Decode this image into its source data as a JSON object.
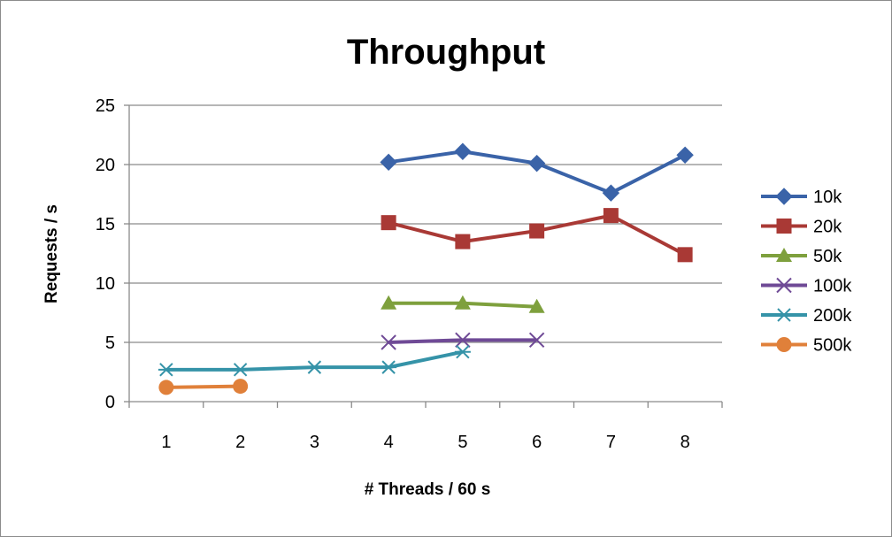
{
  "chart_data": {
    "type": "line",
    "title": "Throughput",
    "xlabel": "# Threads / 60 s",
    "ylabel": "Requests / s",
    "categories": [
      "1",
      "2",
      "3",
      "4",
      "5",
      "6",
      "7",
      "8"
    ],
    "ylim": [
      0,
      25
    ],
    "yticks": [
      "0",
      "5",
      "10",
      "15",
      "20",
      "25"
    ],
    "grid": true,
    "legend_position": "right",
    "series": [
      {
        "name": "10k",
        "color": "#3a63a8",
        "marker": "diamond",
        "values": [
          null,
          null,
          null,
          20.2,
          21.1,
          20.1,
          17.6,
          20.8
        ]
      },
      {
        "name": "20k",
        "color": "#a93935",
        "marker": "square",
        "values": [
          null,
          null,
          null,
          15.1,
          13.5,
          14.4,
          15.7,
          12.4
        ]
      },
      {
        "name": "50k",
        "color": "#7ea03d",
        "marker": "triangle",
        "values": [
          null,
          null,
          null,
          8.3,
          8.3,
          8.0,
          null,
          null
        ]
      },
      {
        "name": "100k",
        "color": "#6f4a96",
        "marker": "x",
        "values": [
          null,
          null,
          null,
          5.0,
          5.2,
          5.2,
          null,
          null
        ]
      },
      {
        "name": "200k",
        "color": "#3593a8",
        "marker": "star",
        "values": [
          2.7,
          2.7,
          2.9,
          2.9,
          4.2,
          null,
          null,
          null
        ]
      },
      {
        "name": "500k",
        "color": "#e0803a",
        "marker": "circle",
        "values": [
          1.2,
          1.3,
          null,
          null,
          null,
          null,
          null,
          null
        ]
      }
    ]
  }
}
